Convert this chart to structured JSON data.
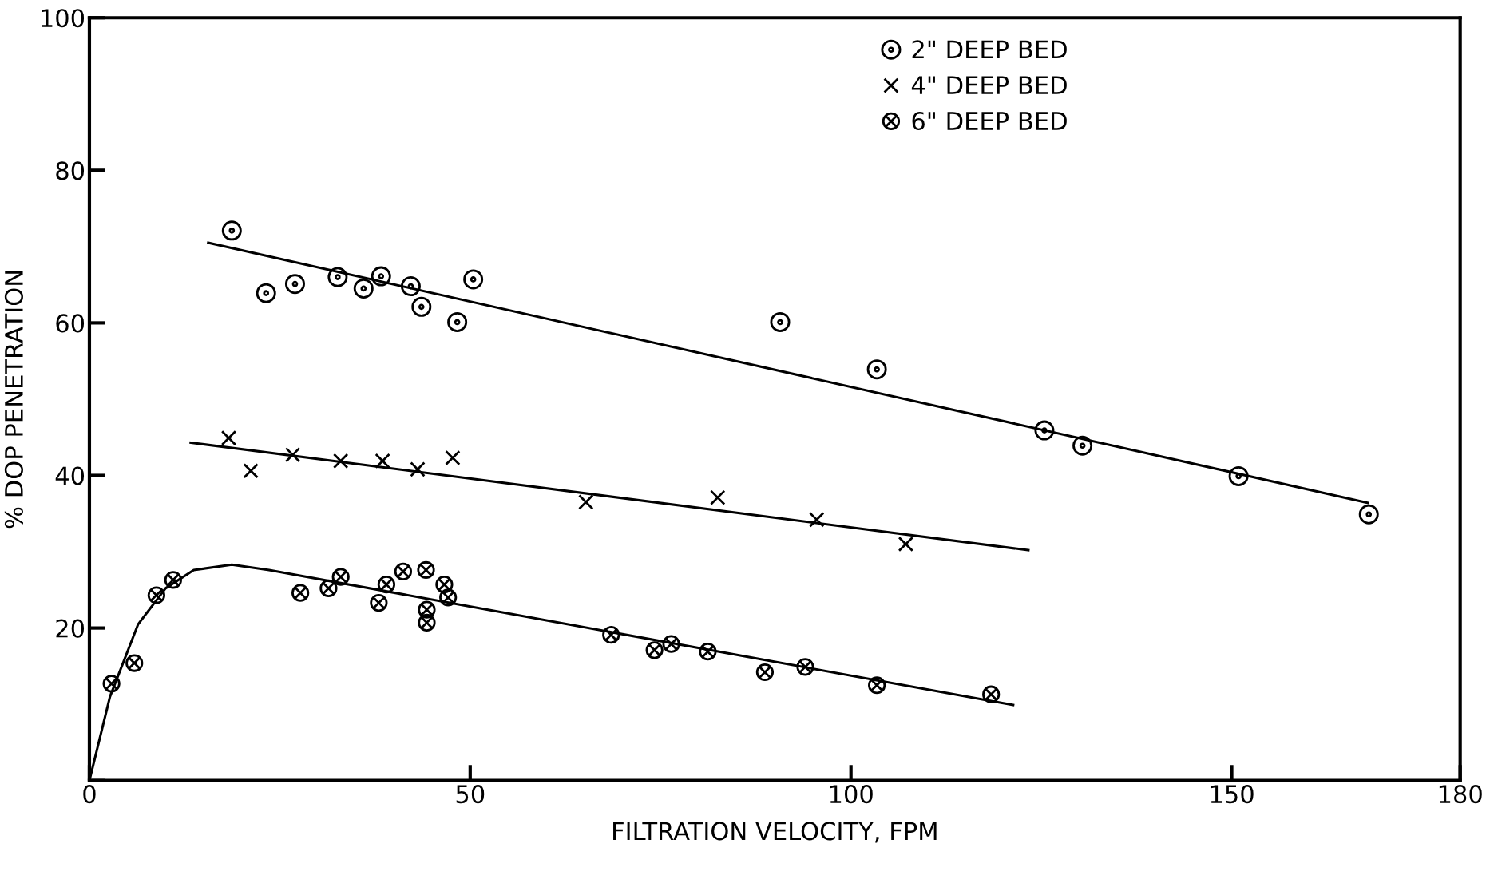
{
  "chart_data": {
    "type": "scatter",
    "xlabel": "FILTRATION VELOCITY, FPM",
    "ylabel": "% DOP PENETRATION",
    "xlim": [
      0,
      180
    ],
    "xticks": [
      0,
      50,
      100,
      150,
      180
    ],
    "ylim": [
      0,
      100
    ],
    "yticks": [
      {
        "value": 0,
        "label": null
      },
      20,
      40,
      60,
      80,
      100
    ],
    "grid": false,
    "legend": "top right",
    "series": [
      {
        "name": "2\" DEEP BED",
        "marker": "circle",
        "color": "#000000",
        "x": [
          18.7,
          23.2,
          27.0,
          32.6,
          36.0,
          38.3,
          42.2,
          43.6,
          48.3,
          50.4,
          90.7,
          103.4,
          125.4,
          130.4,
          150.9,
          168.0
        ],
        "values": [
          72.1,
          63.9,
          65.1,
          66.0,
          64.5,
          66.1,
          64.8,
          62.1,
          60.1,
          65.7,
          60.1,
          53.9,
          45.9,
          43.9,
          39.9,
          34.9
        ]
      },
      {
        "name": "4\" DEEP BED",
        "marker": "cross",
        "color": "#000000",
        "x": [
          18.3,
          21.2,
          26.7,
          33.0,
          38.5,
          43.1,
          47.7,
          65.2,
          82.5,
          95.5,
          107.2
        ],
        "values": [
          44.9,
          40.6,
          42.7,
          41.9,
          41.9,
          40.8,
          42.3,
          36.5,
          37.1,
          34.2,
          31.0
        ]
      },
      {
        "name": "6\" DEEP BED",
        "color": "#000000",
        "x": [
          2.9,
          5.9,
          8.8,
          11.0,
          27.7,
          31.4,
          33.0,
          38.0,
          39.0,
          41.2,
          44.2,
          46.6,
          47.1,
          44.3,
          44.3,
          68.5,
          74.2,
          76.4,
          81.2,
          88.7,
          94.0,
          103.4,
          118.4
        ],
        "values": [
          12.7,
          15.4,
          24.3,
          26.3,
          24.6,
          25.2,
          26.7,
          23.3,
          25.7,
          27.4,
          27.6,
          25.7,
          24.0,
          22.4,
          20.7,
          19.1,
          17.1,
          17.9,
          16.9,
          14.2,
          14.9,
          12.5,
          11.3
        ]
      },
      {
        "type": "line",
        "marker": "none",
        "line_style": "solid",
        "color": "#000000",
        "x": [
          15.6,
          167.9
        ],
        "values": [
          70.5,
          36.4
        ]
      },
      {
        "type": "line",
        "marker": "none",
        "line_style": "solid",
        "color": "#000000",
        "x": [
          13.3,
          123.3
        ],
        "values": [
          44.3,
          30.2
        ]
      },
      {
        "type": "line",
        "marker": "none",
        "line_style": "solid",
        "color": "#000000",
        "x": [
          0,
          2.7,
          6.4,
          10.0,
          13.7,
          18.7,
          23.6,
          121.3
        ],
        "values": [
          0,
          11.0,
          20.5,
          25.2,
          27.6,
          28.3,
          27.6,
          9.9
        ]
      }
    ]
  }
}
